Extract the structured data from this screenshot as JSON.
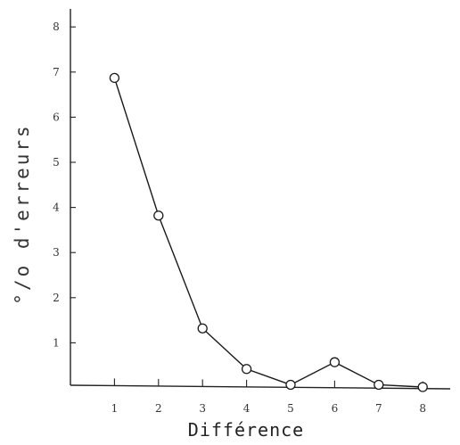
{
  "chart_data": {
    "type": "line",
    "xlabel": "Différence",
    "ylabel": "°/o d'erreurs",
    "x": [
      1,
      2,
      3,
      4,
      5,
      6,
      7,
      8
    ],
    "x_tick_labels": [
      "1",
      "2",
      "3",
      "4",
      "5",
      "6",
      "7",
      "8"
    ],
    "y_tick_labels": [
      "1",
      "2",
      "3",
      "4",
      "5",
      "6",
      "7",
      "8"
    ],
    "series": [
      {
        "values": [
          6.85,
          3.8,
          1.3,
          0.4,
          0.05,
          0.55,
          0.05,
          0.0
        ]
      }
    ],
    "xlim": [
      0,
      8.1
    ],
    "ylim": [
      0,
      8.5
    ],
    "grid": false,
    "marker": "open-circle",
    "colors": {
      "line": "#1a1a1a",
      "marker_fill": "#ffffff"
    }
  }
}
